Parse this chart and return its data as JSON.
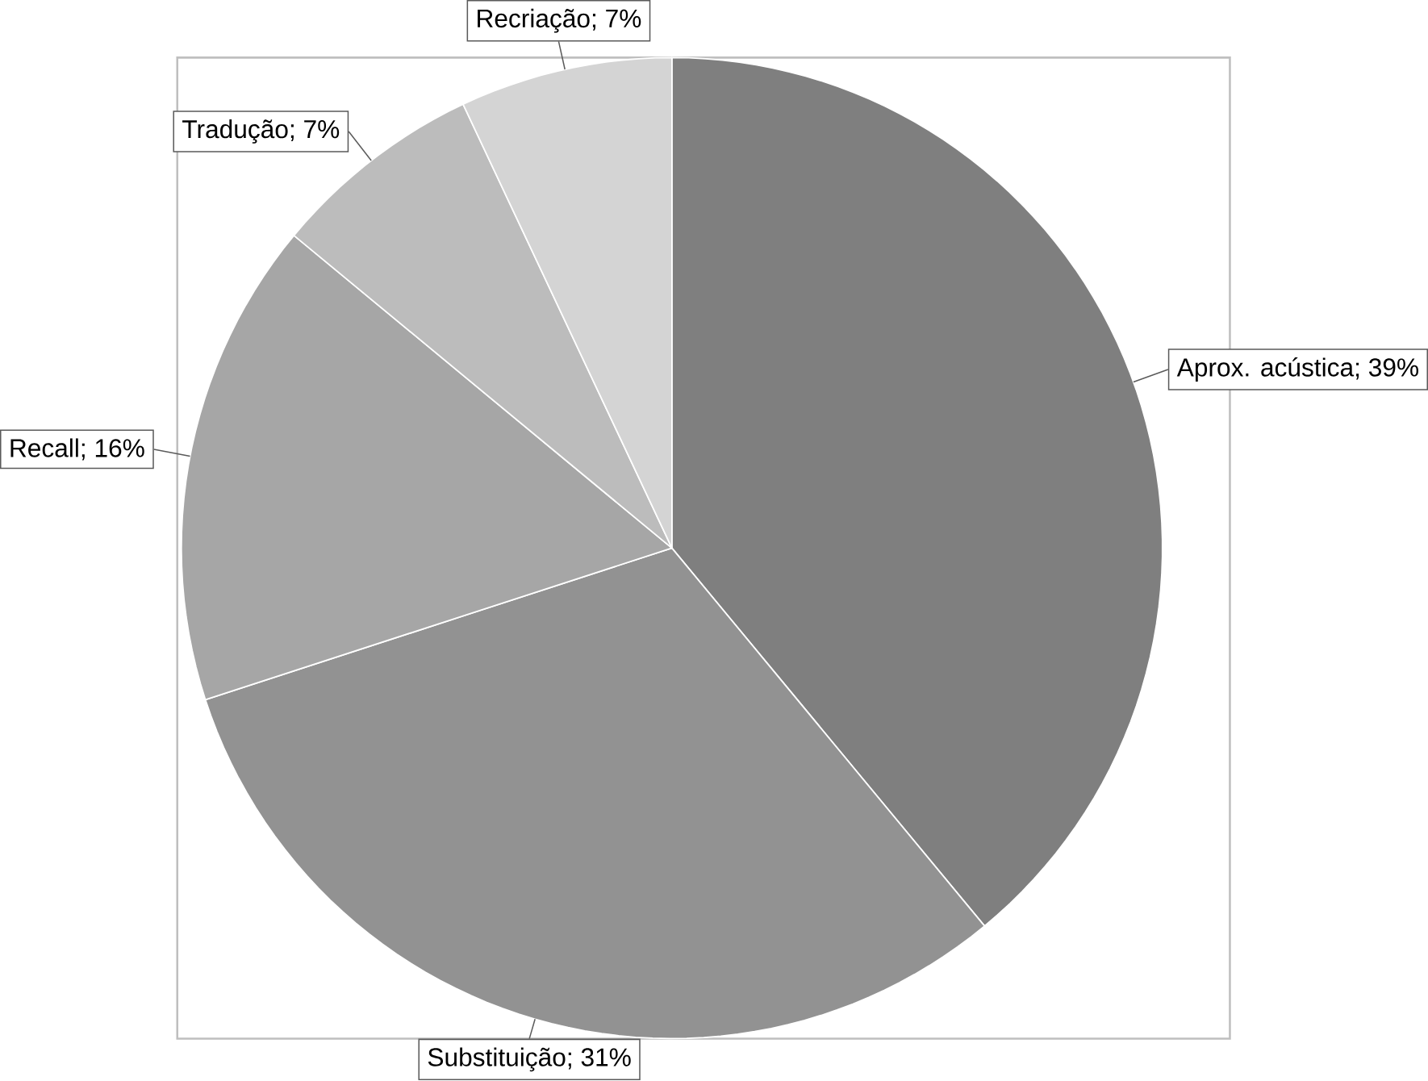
{
  "chart_data": {
    "type": "pie",
    "categories": [
      "Aprox. acústica",
      "Substituição",
      "Recall",
      "Tradução",
      "Recriação"
    ],
    "values": [
      39,
      31,
      16,
      7,
      7
    ],
    "colors": [
      "#7f7f7f",
      "#929292",
      "#a6a6a6",
      "#bcbcbc",
      "#d4d4d4"
    ],
    "value_labels": [
      "; 39%",
      "; 31%",
      "; 16%",
      "; 7%",
      "; 7%"
    ]
  }
}
